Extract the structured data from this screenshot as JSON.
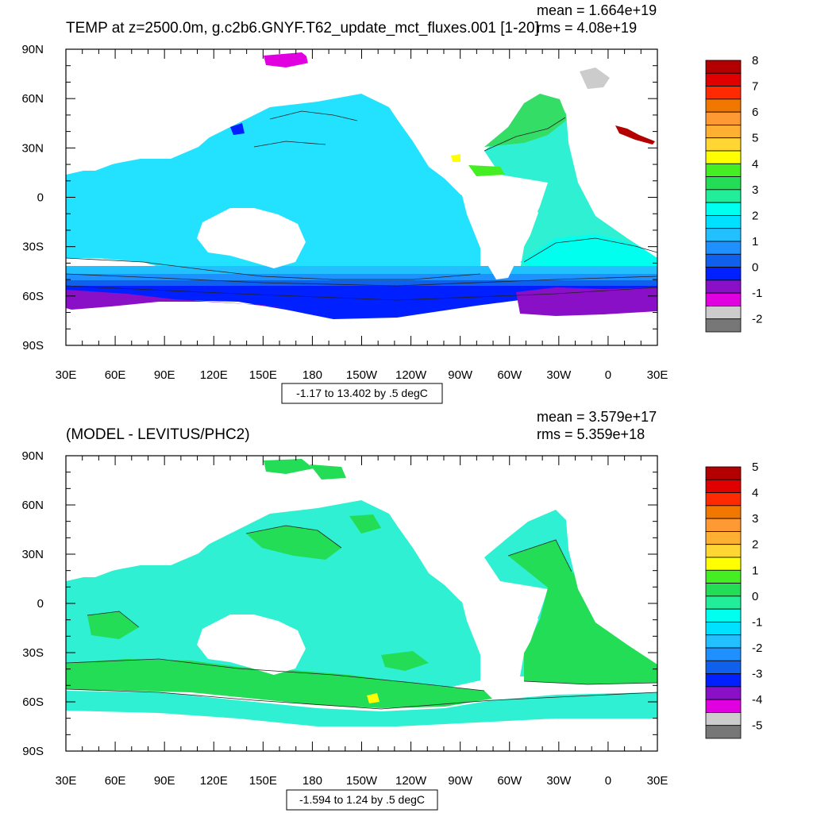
{
  "chart_data": [
    {
      "type": "heatmap",
      "title": "TEMP at z=2500.0m, g.c2b6.GNYF.T62_update_mct_fluxes.001 [1-20]",
      "stats": {
        "mean": "mean = 1.664e+19",
        "rms": "rms = 4.08e+19"
      },
      "range_label": "-1.17 to 13.402 by .5 degC",
      "x_ticks": [
        "30E",
        "60E",
        "90E",
        "120E",
        "150E",
        "180",
        "150W",
        "120W",
        "90W",
        "60W",
        "30W",
        "0",
        "30E"
      ],
      "y_ticks": [
        "90N",
        "60N",
        "30N",
        "0",
        "30S",
        "60S",
        "90S"
      ],
      "xlim": [
        30,
        390
      ],
      "ylim": [
        -90,
        90
      ],
      "colorbar": {
        "labels": [
          "8",
          "7",
          "6",
          "5",
          "4",
          "3",
          "2",
          "1",
          "0",
          "-1",
          "-2"
        ],
        "colors": [
          "#b30000",
          "#e00000",
          "#ff2a00",
          "#f07800",
          "#ff9933",
          "#ffb033",
          "#ffd633",
          "#ffff00",
          "#44ee22",
          "#22dd55",
          "#22ee99",
          "#00ffee",
          "#00e0ff",
          "#22c0ff",
          "#1e90ff",
          "#1060ee",
          "#0020ff",
          "#8a10c8",
          "#e000e0",
          "#cccccc",
          "#777777"
        ]
      }
    },
    {
      "type": "heatmap",
      "title": "(MODEL - LEVITUS/PHC2)",
      "stats": {
        "mean": "mean = 3.579e+17",
        "rms": "rms = 5.359e+18"
      },
      "range_label": "-1.594 to 1.24 by .5 degC",
      "x_ticks": [
        "30E",
        "60E",
        "90E",
        "120E",
        "150E",
        "180",
        "150W",
        "120W",
        "90W",
        "60W",
        "30W",
        "0",
        "30E"
      ],
      "y_ticks": [
        "90N",
        "60N",
        "30N",
        "0",
        "30S",
        "60S",
        "90S"
      ],
      "xlim": [
        30,
        390
      ],
      "ylim": [
        -90,
        90
      ],
      "colorbar": {
        "labels": [
          "5",
          "4",
          "3",
          "2",
          "1",
          "0",
          "-1",
          "-2",
          "-3",
          "-4",
          "-5"
        ],
        "colors": [
          "#b30000",
          "#e00000",
          "#ff2a00",
          "#f07800",
          "#ff9933",
          "#ffb033",
          "#ffd633",
          "#ffff00",
          "#44ee22",
          "#22dd55",
          "#22ee99",
          "#00ffee",
          "#00e0ff",
          "#22c0ff",
          "#1e90ff",
          "#1060ee",
          "#0020ff",
          "#8a10c8",
          "#e000e0",
          "#cccccc",
          "#777777"
        ]
      }
    }
  ]
}
